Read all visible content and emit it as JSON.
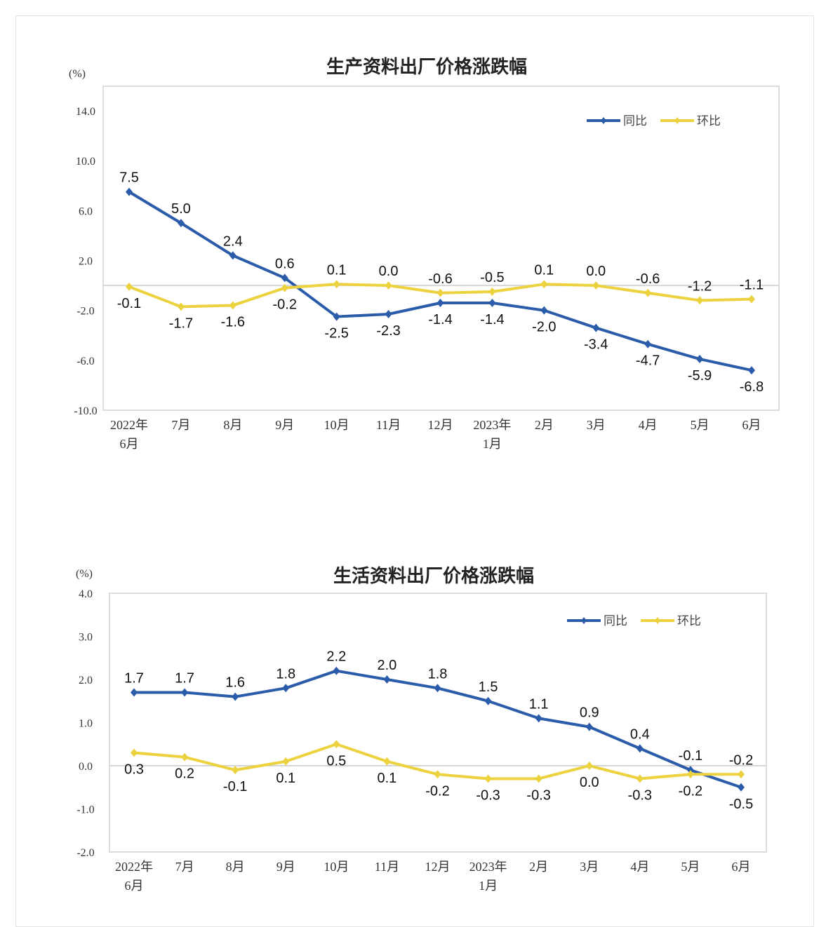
{
  "chart_data": [
    {
      "type": "line",
      "title": "生产资料出厂价格涨跌幅",
      "ylabel": "(%)",
      "ylim": [
        -10,
        14
      ],
      "yticks": [
        "14.0",
        "10.0",
        "6.0",
        "2.0",
        "-2.0",
        "-6.0",
        "-10.0"
      ],
      "ytick_values": [
        14,
        10,
        6,
        2,
        -2,
        -6,
        -10
      ],
      "categories": [
        [
          "2022年",
          "6月"
        ],
        [
          "7月"
        ],
        [
          "8月"
        ],
        [
          "9月"
        ],
        [
          "10月"
        ],
        [
          "11月"
        ],
        [
          "12月"
        ],
        [
          "2023年",
          "1月"
        ],
        [
          "2月"
        ],
        [
          "3月"
        ],
        [
          "4月"
        ],
        [
          "5月"
        ],
        [
          "6月"
        ]
      ],
      "legend_position": "top-right",
      "grid": false,
      "series": [
        {
          "name": "同比",
          "color": "#2a5caa",
          "values": [
            7.5,
            5.0,
            2.4,
            0.6,
            -2.5,
            -2.3,
            -1.4,
            -1.4,
            -2.0,
            -3.4,
            -4.7,
            -5.9,
            -6.8
          ],
          "labels": [
            "7.5",
            "5.0",
            "2.4",
            "0.6",
            "-2.5",
            "-2.3",
            "-1.4",
            "-1.4",
            "-2.0",
            "-3.4",
            "-4.7",
            "-5.9",
            "-6.8"
          ]
        },
        {
          "name": "环比",
          "color": "#ecd23e",
          "values": [
            -0.1,
            -1.7,
            -1.6,
            -0.2,
            0.1,
            0.0,
            -0.6,
            -0.5,
            0.1,
            0.0,
            -0.6,
            -1.2,
            -1.1
          ],
          "labels": [
            "-0.1",
            "-1.7",
            "-1.6",
            "-0.2",
            "0.1",
            "0.0",
            "-0.6",
            "-0.5",
            "0.1",
            "0.0",
            "-0.6",
            "-1.2",
            "-1.1"
          ]
        }
      ]
    },
    {
      "type": "line",
      "title": "生活资料出厂价格涨跌幅",
      "ylabel": "(%)",
      "ylim": [
        -2,
        4
      ],
      "yticks": [
        "4.0",
        "3.0",
        "2.0",
        "1.0",
        "0.0",
        "-1.0",
        "-2.0"
      ],
      "ytick_values": [
        4,
        3,
        2,
        1,
        0,
        -1,
        -2
      ],
      "categories": [
        [
          "2022年",
          "6月"
        ],
        [
          "7月"
        ],
        [
          "8月"
        ],
        [
          "9月"
        ],
        [
          "10月"
        ],
        [
          "11月"
        ],
        [
          "12月"
        ],
        [
          "2023年",
          "1月"
        ],
        [
          "2月"
        ],
        [
          "3月"
        ],
        [
          "4月"
        ],
        [
          "5月"
        ],
        [
          "6月"
        ]
      ],
      "legend_position": "top-right",
      "grid": false,
      "series": [
        {
          "name": "同比",
          "color": "#2a5caa",
          "values": [
            1.7,
            1.7,
            1.6,
            1.8,
            2.2,
            2.0,
            1.8,
            1.5,
            1.1,
            0.9,
            0.4,
            -0.1,
            -0.5
          ],
          "labels": [
            "1.7",
            "1.7",
            "1.6",
            "1.8",
            "2.2",
            "2.0",
            "1.8",
            "1.5",
            "1.1",
            "0.9",
            "0.4",
            "-0.1",
            "-0.5"
          ]
        },
        {
          "name": "环比",
          "color": "#ecd23e",
          "values": [
            0.3,
            0.2,
            -0.1,
            0.1,
            0.5,
            0.1,
            -0.2,
            -0.3,
            -0.3,
            0.0,
            -0.3,
            -0.2,
            -0.2
          ],
          "labels": [
            "0.3",
            "0.2",
            "-0.1",
            "0.1",
            "0.5",
            "0.1",
            "-0.2",
            "-0.3",
            "-0.3",
            "0.0",
            "-0.3",
            "-0.2",
            "-0.2"
          ]
        }
      ]
    }
  ]
}
